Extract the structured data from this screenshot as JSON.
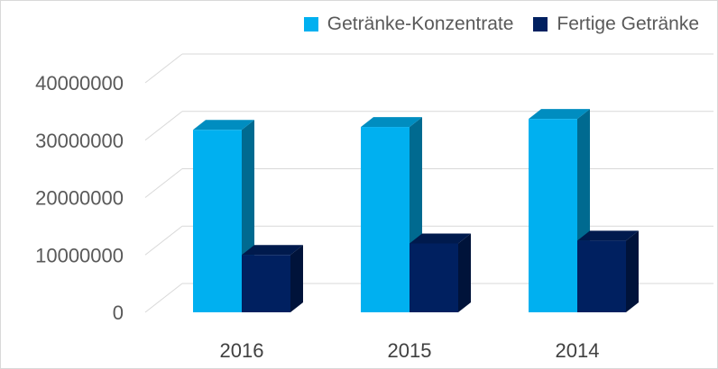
{
  "chart_data": {
    "type": "bar",
    "subtype": "3d-clustered-column",
    "categories": [
      "2016",
      "2015",
      "2014"
    ],
    "series": [
      {
        "name": "Getränke-Konzentrate",
        "values": [
          31800000,
          32300000,
          33700000
        ],
        "color": "#00b0f0"
      },
      {
        "name": "Fertige Getränke",
        "values": [
          10000000,
          12000000,
          12500000
        ],
        "color": "#002060"
      }
    ],
    "y_ticks": [
      "0",
      "10000000",
      "20000000",
      "30000000",
      "40000000"
    ],
    "ylim": [
      0,
      40000000
    ],
    "title": "",
    "xlabel": "",
    "ylabel": "",
    "grid": true,
    "legend": "top-right"
  }
}
